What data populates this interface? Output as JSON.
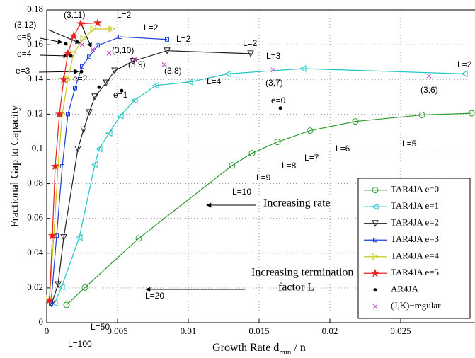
{
  "chart_data": {
    "type": "line",
    "x_label_parts": [
      "Growth Rate d",
      "min",
      " / n"
    ],
    "y_label": "Fractional Gap to Capacity",
    "xlim": [
      0,
      0.03
    ],
    "ylim": [
      0,
      0.18
    ],
    "xticks": [
      0,
      0.005,
      0.01,
      0.015,
      0.02,
      0.025
    ],
    "yticks": [
      0,
      0.02,
      0.04,
      0.06,
      0.08,
      0.1,
      0.12,
      0.14,
      0.16,
      0.18
    ],
    "grid": true,
    "legend": "lower right",
    "series": [
      {
        "name": "TAR4JA e=0",
        "color": "#2e9a2e",
        "marker": "circle",
        "mode": "lines+markers",
        "x": [
          0.0014,
          0.0027,
          0.0065,
          0.0131,
          0.0145,
          0.0163,
          0.0186,
          0.0218,
          0.0265,
          0.03
        ],
        "values": [
          0.0102,
          0.0202,
          0.0485,
          0.0905,
          0.0975,
          0.104,
          0.1105,
          0.1158,
          0.1195,
          0.1205
        ]
      },
      {
        "name": "TAR4JA e=1",
        "color": "#1fc4c4",
        "marker": "triangle-left",
        "mode": "lines+markers",
        "x": [
          0.00055,
          0.00105,
          0.0023,
          0.0034,
          0.0037,
          0.0044,
          0.0052,
          0.0062,
          0.0077,
          0.0101,
          0.0128,
          0.0181,
          0.0295
        ],
        "values": [
          0.0112,
          0.0205,
          0.049,
          0.091,
          0.1,
          0.109,
          0.119,
          0.128,
          0.1365,
          0.1385,
          0.1432,
          0.1462,
          0.1432
        ]
      },
      {
        "name": "TAR4JA e=2",
        "color": "#222222",
        "marker": "triangle-down",
        "mode": "lines+markers",
        "x": [
          0.00035,
          0.0008,
          0.0012,
          0.0022,
          0.0026,
          0.003,
          0.0034,
          0.0042,
          0.0048,
          0.0061,
          0.0085,
          0.0144
        ],
        "values": [
          0.0108,
          0.022,
          0.049,
          0.1,
          0.111,
          0.121,
          0.13,
          0.138,
          0.145,
          0.1505,
          0.1565,
          0.1548
        ]
      },
      {
        "name": "TAR4JA e=3",
        "color": "#1f3fd6",
        "marker": "square",
        "mode": "lines+markers",
        "x": [
          0.0003,
          0.0007,
          0.0011,
          0.0015,
          0.002,
          0.0025,
          0.003,
          0.0036,
          0.0052,
          0.0085
        ],
        "values": [
          0.011,
          0.05,
          0.09,
          0.12,
          0.135,
          0.1475,
          0.153,
          0.1595,
          0.1645,
          0.163
        ]
      },
      {
        "name": "TAR4JA e=4",
        "color": "#c8c81e",
        "marker": "triangle-right",
        "mode": "lines+markers",
        "x": [
          0.0002,
          0.0005,
          0.0008,
          0.0011,
          0.0015,
          0.0019,
          0.0026,
          0.0033,
          0.0046
        ],
        "values": [
          0.014,
          0.05,
          0.09,
          0.12,
          0.14,
          0.155,
          0.1635,
          0.169,
          0.169
        ]
      },
      {
        "name": "TAR4JA e=5",
        "color": "#e8231e",
        "marker": "star",
        "mode": "lines+markers",
        "x": [
          0.0002,
          0.0004,
          0.0006,
          0.0009,
          0.0012,
          0.0015,
          0.0019,
          0.0024,
          0.0036
        ],
        "values": [
          0.013,
          0.05,
          0.09,
          0.12,
          0.14,
          0.155,
          0.165,
          0.172,
          0.1725
        ]
      },
      {
        "name": "AR4JA",
        "color": "#000000",
        "marker": "dot",
        "mode": "markers",
        "x": [
          0.00135,
          0.0017,
          0.00245,
          0.0037,
          0.0053,
          0.0165
        ],
        "values": [
          0.1605,
          0.1535,
          0.1445,
          0.1355,
          0.1335,
          0.1235
        ]
      },
      {
        "name": "(J,K)−regular",
        "color": "#cc33cc",
        "marker": "x",
        "mode": "markers",
        "x": [
          0.0025,
          0.00325,
          0.0044,
          0.0062,
          0.0083,
          0.016,
          0.027
        ],
        "values": [
          0.16,
          0.157,
          0.155,
          0.1515,
          0.1485,
          0.1455,
          0.142
        ]
      }
    ],
    "annotations": [
      "L=100",
      "L=50",
      "L=20",
      "L=10",
      "L=9",
      "L=8",
      "L=7",
      "L=6",
      "L=5",
      "L=2",
      "L=4",
      "L=3",
      "L=2",
      "L=2",
      "L=2",
      "L=2",
      "(3,6)",
      "(3,7)",
      "(3,8)",
      "(3,9)",
      "(3,10)",
      "(3,11)",
      "(3,12)",
      "e=5",
      "e=4",
      "e=3",
      "e=2",
      "e=1",
      "e=0",
      "Increasing rate",
      "Increasing termination",
      "factor L"
    ]
  }
}
